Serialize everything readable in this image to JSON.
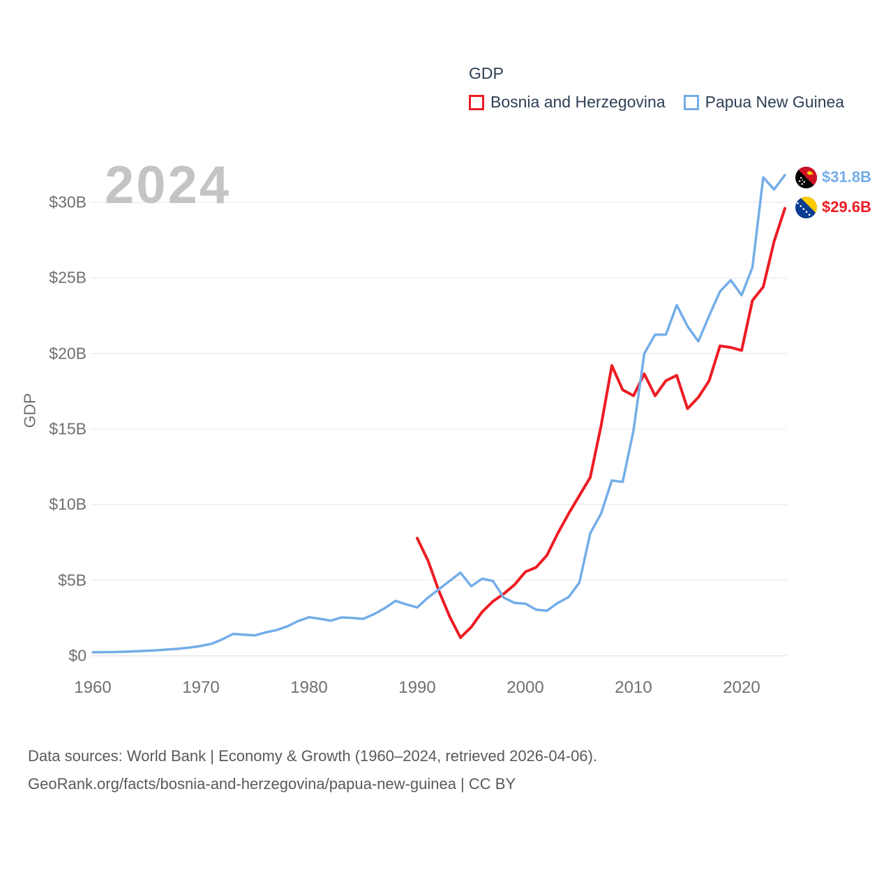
{
  "legend": {
    "title": "GDP",
    "series": [
      {
        "label": "Bosnia and Herzegovina",
        "color": "#ed1c24"
      },
      {
        "label": "Papua New Guinea",
        "color": "#74ade8"
      }
    ]
  },
  "watermark_year": "2024",
  "y_axis_title": "GDP",
  "end_labels": [
    {
      "value": "$31.8B",
      "color": "#74ade8",
      "flag": "papua-new-guinea"
    },
    {
      "value": "$29.6B",
      "color": "#ed1c24",
      "flag": "bosnia-and-herzegovina"
    }
  ],
  "footer": {
    "line1": "Data sources: World Bank | Economy & Growth (1960–2024, retrieved 2026-04-06).",
    "line2": "GeoRank.org/facts/bosnia-and-herzegovina/papua-new-guinea | CC BY"
  },
  "chart_data": {
    "type": "line",
    "title": "GDP",
    "ylabel": "GDP",
    "xlabel": "",
    "ylim": [
      0,
      32
    ],
    "xlim": [
      1960,
      2024
    ],
    "grid": true,
    "legend_position": "top-right",
    "x_ticks": [
      1960,
      1970,
      1980,
      1990,
      2000,
      2010,
      2020
    ],
    "y_ticks": [
      {
        "value": 0,
        "label": "$0"
      },
      {
        "value": 5,
        "label": "$5B"
      },
      {
        "value": 10,
        "label": "$10B"
      },
      {
        "value": 15,
        "label": "$15B"
      },
      {
        "value": 20,
        "label": "$20B"
      },
      {
        "value": 25,
        "label": "$25B"
      },
      {
        "value": 30,
        "label": "$30B"
      }
    ],
    "series": [
      {
        "name": "Bosnia and Herzegovina",
        "color": "#ed1c24",
        "stroke_width": 4,
        "start_year": 1990,
        "end_value_label": "$29.6B",
        "values": [
          7.78,
          6.3,
          4.3,
          2.6,
          1.2,
          1.9,
          2.9,
          3.6,
          4.1,
          4.7,
          5.55,
          5.85,
          6.65,
          8.1,
          9.4,
          10.6,
          11.8,
          15.2,
          19.2,
          17.6,
          17.2,
          18.65,
          17.2,
          18.2,
          18.55,
          16.35,
          17.1,
          18.2,
          20.5,
          20.4,
          20.2,
          23.5,
          24.4,
          27.4,
          29.6
        ]
      },
      {
        "name": "Papua New Guinea",
        "color": "#74ade8",
        "stroke_width": 3.5,
        "start_year": 1960,
        "end_value_label": "$31.8B",
        "values": [
          0.23,
          0.24,
          0.25,
          0.27,
          0.3,
          0.33,
          0.37,
          0.42,
          0.47,
          0.55,
          0.65,
          0.8,
          1.1,
          1.45,
          1.4,
          1.35,
          1.55,
          1.7,
          1.95,
          2.3,
          2.55,
          2.45,
          2.32,
          2.54,
          2.5,
          2.44,
          2.75,
          3.15,
          3.63,
          3.4,
          3.2,
          3.85,
          4.4,
          4.95,
          5.5,
          4.6,
          5.1,
          4.95,
          3.85,
          3.5,
          3.45,
          3.05,
          2.98,
          3.5,
          3.88,
          4.85,
          8.1,
          9.4,
          11.6,
          11.5,
          14.9,
          20.0,
          21.25,
          21.25,
          23.2,
          21.8,
          20.8,
          22.5,
          24.1,
          24.85,
          23.85,
          25.7,
          31.65,
          30.85,
          31.8
        ]
      }
    ]
  }
}
